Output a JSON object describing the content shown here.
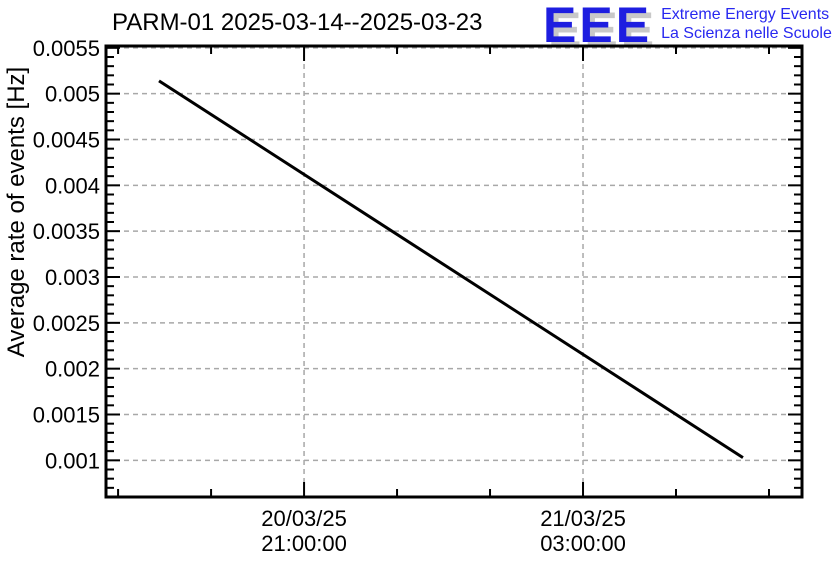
{
  "header": {
    "logo": {
      "acronym": "EEE",
      "line1": "Extreme Energy Events",
      "line2": "La Scienza nelle Scuole",
      "blue": "#1e1ee0",
      "text_blue": "#2828f0",
      "shadow_gray": "#c8c8c8"
    }
  },
  "chart_data": {
    "type": "line",
    "title": "PARM-01 2025-03-14--2025-03-23",
    "ylabel": "Average rate of events [Hz]",
    "xlabel": "",
    "grid": true,
    "grid_style": "dashed",
    "grid_color": "#a8a8a8",
    "line_color": "#000000",
    "background": "#ffffff",
    "ylim": [
      0.0006,
      0.00552
    ],
    "x_unit": "hours since 2025-03-20 00:00:00",
    "xlim_hours": [
      16.74,
      31.71
    ],
    "y_minor_step": 0.0001,
    "y_ticks": [
      {
        "value": 0.001,
        "label": "0.001"
      },
      {
        "value": 0.0015,
        "label": "0.0015"
      },
      {
        "value": 0.002,
        "label": "0.002"
      },
      {
        "value": 0.0025,
        "label": "0.0025"
      },
      {
        "value": 0.003,
        "label": "0.003"
      },
      {
        "value": 0.0035,
        "label": "0.0035"
      },
      {
        "value": 0.004,
        "label": "0.004"
      },
      {
        "value": 0.0045,
        "label": "0.0045"
      },
      {
        "value": 0.005,
        "label": "0.005"
      },
      {
        "value": 0.0055,
        "label": "0.0055"
      }
    ],
    "x_major_ticks": [
      {
        "hours": 21,
        "labels": [
          "20/03/25",
          "21:00:00"
        ]
      },
      {
        "hours": 27,
        "labels": [
          "21/03/25",
          "03:00:00"
        ]
      }
    ],
    "x_minor_tick_hours": [
      17,
      19,
      23,
      25,
      29,
      31
    ],
    "series": [
      {
        "name": "average_rate_hz",
        "points": [
          {
            "hours": 17.88,
            "value": 0.00514
          },
          {
            "hours": 30.44,
            "value": 0.00103
          }
        ]
      }
    ]
  }
}
